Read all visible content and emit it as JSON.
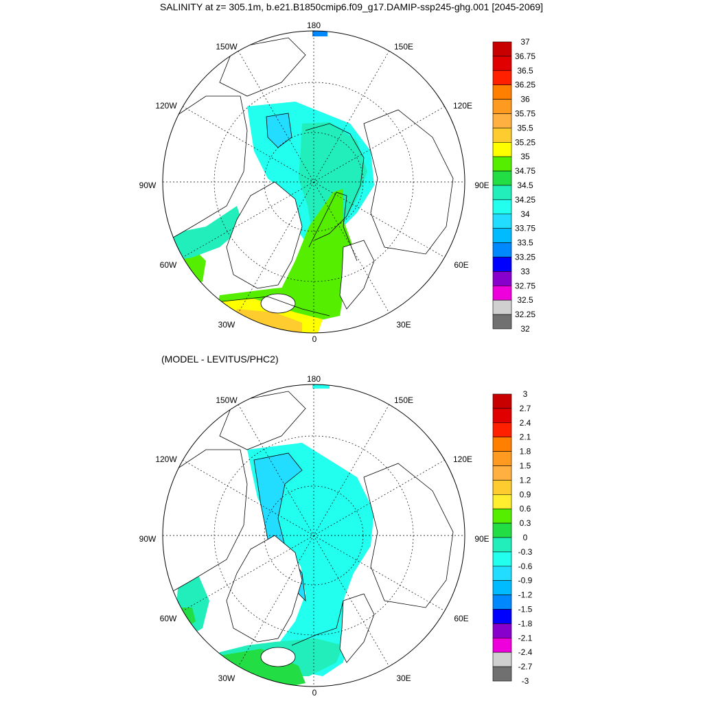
{
  "title": "SALINITY at z= 305.1m, b.e21.B1850cmip6.f09_g17.DAMIP-ssp245-ghg.001 [2045-2069]",
  "subtitle": "(MODEL - LEVITUS/PHC2)",
  "lon_labels": {
    "180": "180",
    "150W": "150W",
    "150E": "150E",
    "120W": "120W",
    "120E": "120E",
    "90W": "90W",
    "90E": "90E",
    "60W": "60W",
    "60E": "60E",
    "30W": "30W",
    "30E": "30E",
    "0": "0"
  },
  "top_colorbar": {
    "labels": [
      "37",
      "36.75",
      "36.5",
      "36.25",
      "36",
      "35.75",
      "35.5",
      "35.25",
      "35",
      "34.75",
      "34.5",
      "34.25",
      "34",
      "33.75",
      "33.5",
      "33.25",
      "33",
      "32.75",
      "32.5",
      "32.25",
      "32"
    ],
    "colors": [
      "#c80000",
      "#e00000",
      "#ff2000",
      "#ff8000",
      "#ff9a20",
      "#ffb040",
      "#ffcc30",
      "#ffff00",
      "#55ee00",
      "#22dd44",
      "#22eebb",
      "#22ffee",
      "#22ddff",
      "#00bbff",
      "#0088ff",
      "#0000ff",
      "#8800cc",
      "#ee00dd",
      "#d0d0d0",
      "#707070"
    ]
  },
  "bottom_colorbar": {
    "labels": [
      "3",
      "2.7",
      "2.4",
      "2.1",
      "1.8",
      "1.5",
      "1.2",
      "0.9",
      "0.6",
      "0.3",
      "0",
      "-0.3",
      "-0.6",
      "-0.9",
      "-1.2",
      "-1.5",
      "-1.8",
      "-2.1",
      "-2.4",
      "-2.7",
      "-3"
    ],
    "colors": [
      "#c80000",
      "#e00000",
      "#ff2000",
      "#ff8000",
      "#ff9a20",
      "#ffb040",
      "#ffcc30",
      "#ffee30",
      "#55ee00",
      "#22dd44",
      "#22eebb",
      "#22ffee",
      "#22ddff",
      "#00bbff",
      "#0088ff",
      "#0000ff",
      "#8800cc",
      "#ee00dd",
      "#d0d0d0",
      "#707070"
    ]
  }
}
